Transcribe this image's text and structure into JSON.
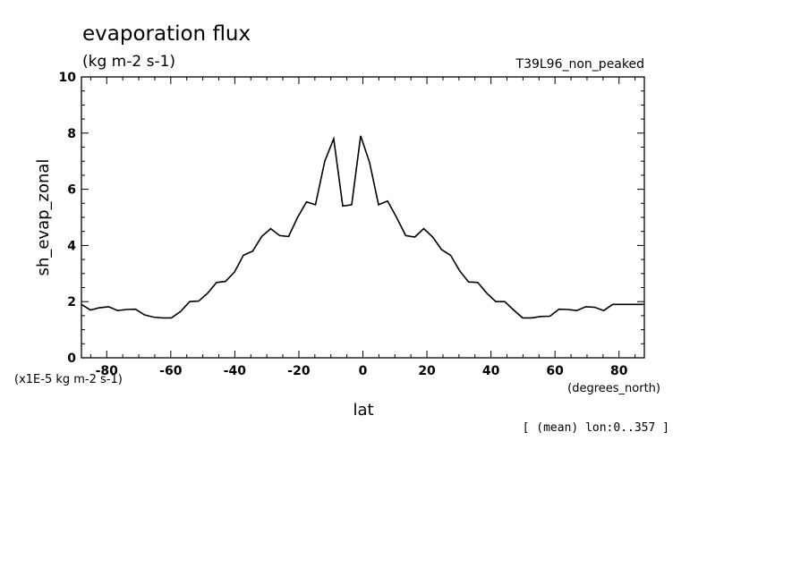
{
  "chart_data": {
    "type": "line",
    "title": "evaporation flux",
    "subtitle": "(kg m-2 s-1)",
    "run_label": "T39L96_non_peaked",
    "xlabel": "lat",
    "x_units": "(degrees_north)",
    "ylabel": "sh_evap_zonal",
    "y_scale_note": "(x1E-5 kg m-2 s-1)",
    "footer_note": "[ (mean) lon:0..357 ]",
    "xlim": [
      -87.9,
      87.9
    ],
    "ylim": [
      0,
      10
    ],
    "x_ticks": [
      -80,
      -60,
      -40,
      -20,
      0,
      20,
      40,
      60,
      80
    ],
    "x_tick_labels": [
      "-80",
      "-60",
      "-40",
      "-20",
      "0",
      "20",
      "40",
      "60",
      "80"
    ],
    "y_ticks": [
      0,
      2,
      4,
      6,
      8,
      10
    ],
    "y_tick_labels": [
      "0",
      "2",
      "4",
      "6",
      "8",
      "10"
    ],
    "grid": false,
    "series": [
      {
        "x": [
          -87.9,
          -85.1,
          -82.3,
          -79.4,
          -76.6,
          -73.8,
          -71.0,
          -68.2,
          -65.4,
          -62.6,
          -59.8,
          -56.9,
          -54.1,
          -51.3,
          -48.5,
          -45.7,
          -42.9,
          -40.1,
          -37.3,
          -34.4,
          -31.6,
          -28.8,
          -26.0,
          -23.2,
          -20.4,
          -17.6,
          -14.8,
          -11.9,
          -9.1,
          -6.3,
          -3.5,
          -0.7,
          2.1,
          4.9,
          7.7,
          10.5,
          13.4,
          16.2,
          19.0,
          21.8,
          24.6,
          27.4,
          30.2,
          33.0,
          35.9,
          38.7,
          41.5,
          44.3,
          47.1,
          49.9,
          52.7,
          55.5,
          58.4,
          61.2,
          64.0,
          66.8,
          69.6,
          72.4,
          75.2,
          78.0,
          80.9,
          83.7,
          86.5,
          87.9
        ],
        "y": [
          1.9,
          1.7,
          1.78,
          1.82,
          1.68,
          1.72,
          1.73,
          1.53,
          1.45,
          1.42,
          1.42,
          1.65,
          2.0,
          2.02,
          2.3,
          2.68,
          2.72,
          3.05,
          3.65,
          3.8,
          4.32,
          4.6,
          4.35,
          4.32,
          5.0,
          5.55,
          5.45,
          7.0,
          7.8,
          5.4,
          5.45,
          7.9,
          6.95,
          5.45,
          5.58,
          5.0,
          4.35,
          4.3,
          4.6,
          4.3,
          3.85,
          3.65,
          3.1,
          2.7,
          2.68,
          2.3,
          2.0,
          2.0,
          1.7,
          1.42,
          1.42,
          1.47,
          1.48,
          1.73,
          1.72,
          1.68,
          1.82,
          1.8,
          1.68,
          1.9,
          1.9,
          1.9,
          1.9,
          1.9
        ]
      }
    ]
  }
}
